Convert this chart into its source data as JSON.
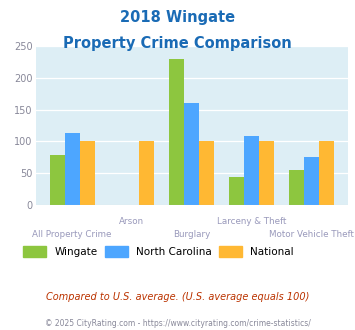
{
  "title_line1": "2018 Wingate",
  "title_line2": "Property Crime Comparison",
  "categories": [
    "All Property Crime",
    "Arson",
    "Burglary",
    "Larceny & Theft",
    "Motor Vehicle Theft"
  ],
  "x_labels_top": [
    "",
    "Arson",
    "",
    "Larceny & Theft",
    ""
  ],
  "x_labels_bottom": [
    "All Property Crime",
    "",
    "Burglary",
    "",
    "Motor Vehicle Theft"
  ],
  "wingate": [
    78,
    0,
    230,
    44,
    55
  ],
  "north_carolina": [
    113,
    0,
    160,
    108,
    75
  ],
  "national": [
    100,
    100,
    100,
    100,
    100
  ],
  "bar_color_wingate": "#8dc63f",
  "bar_color_nc": "#4da6ff",
  "bar_color_national": "#ffb833",
  "bg_color": "#ddeef5",
  "ylim": [
    0,
    250
  ],
  "yticks": [
    0,
    50,
    100,
    150,
    200,
    250
  ],
  "title_color": "#1a6bb5",
  "xlabel_color": "#9999bb",
  "note_text": "Compared to U.S. average. (U.S. average equals 100)",
  "note_color": "#bb3300",
  "footer_text": "© 2025 CityRating.com - https://www.cityrating.com/crime-statistics/",
  "footer_color": "#888899",
  "legend_labels": [
    "Wingate",
    "North Carolina",
    "National"
  ]
}
